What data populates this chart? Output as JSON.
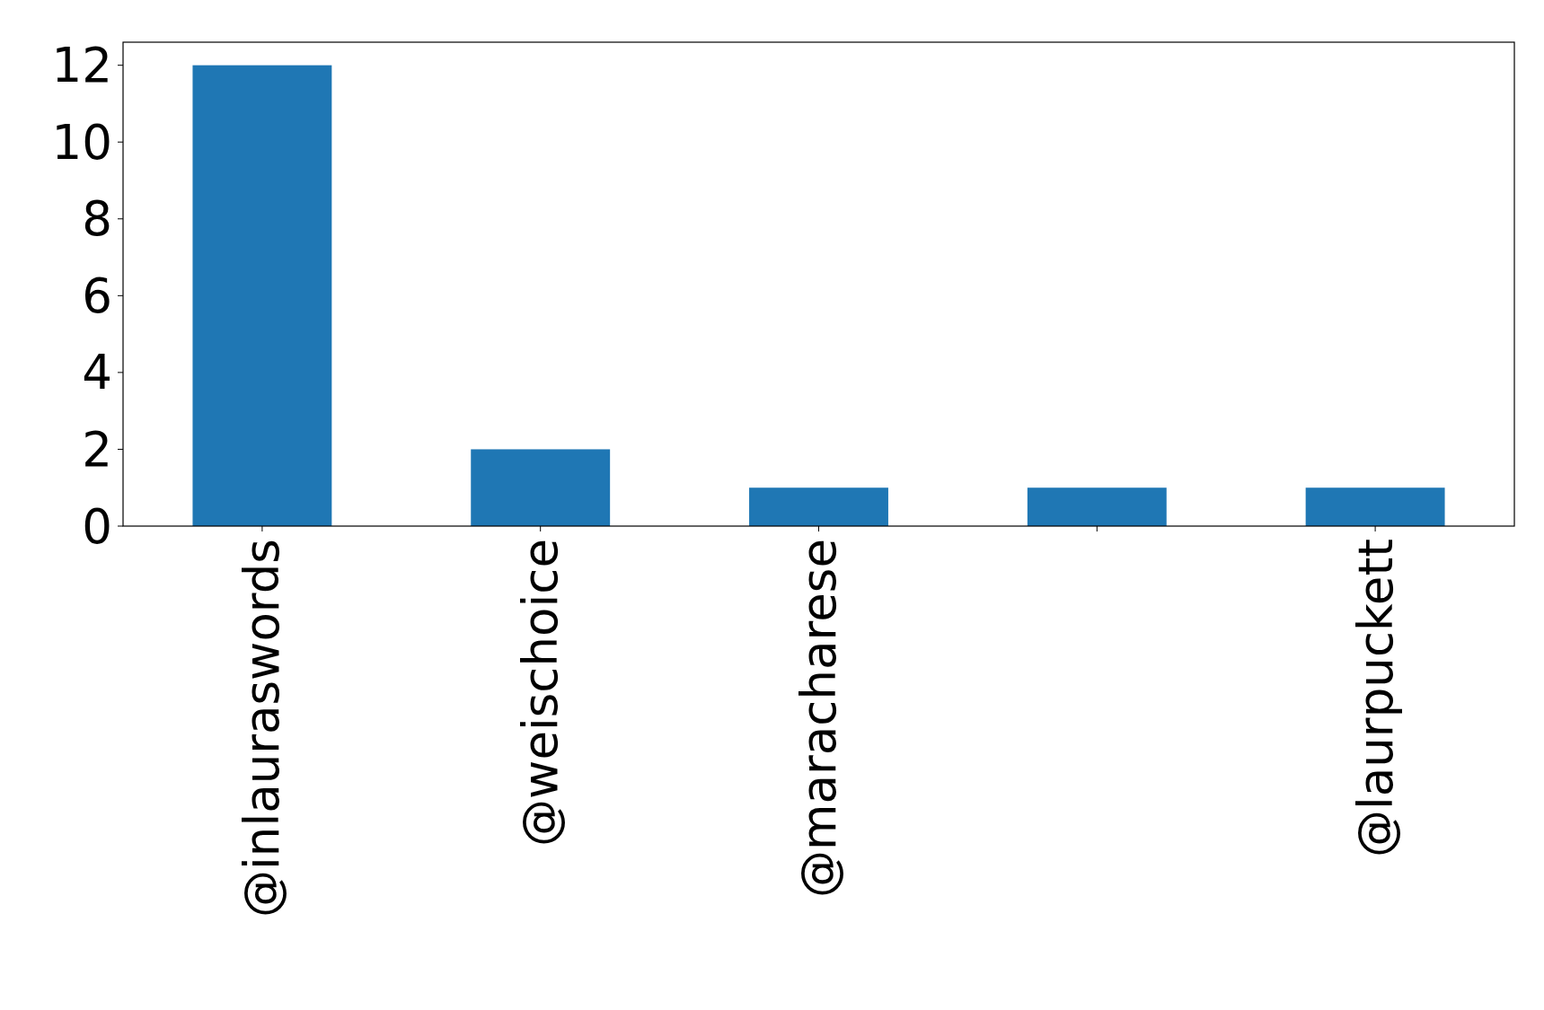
{
  "chart_data": {
    "type": "bar",
    "categories": [
      "@inlauraswords",
      "@weischoice",
      "@maracharese",
      null,
      "@laurpuckett"
    ],
    "values": [
      12,
      2,
      1,
      1,
      1
    ],
    "color": "#1f77b4",
    "ylim": [
      0,
      12.6
    ],
    "yticks": [
      0,
      2,
      4,
      6,
      8,
      10,
      12
    ],
    "grid": false
  }
}
